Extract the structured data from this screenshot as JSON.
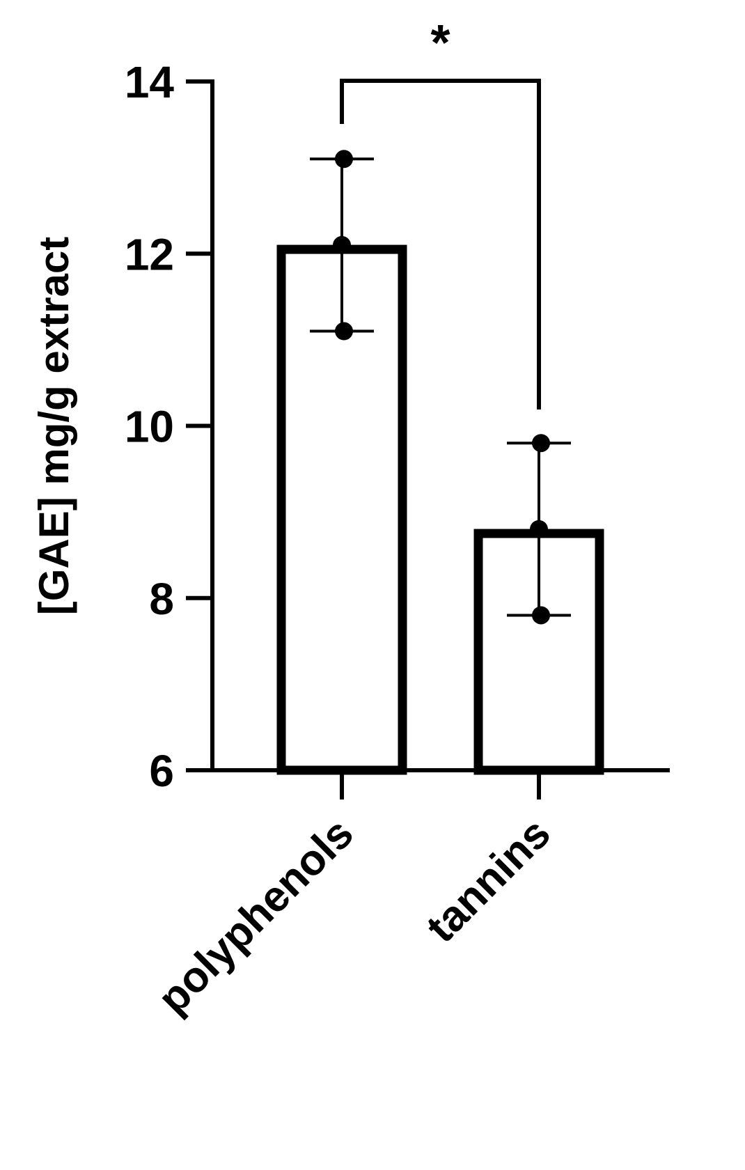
{
  "chart_data": {
    "type": "bar",
    "categories": [
      "polyphenols",
      "tannins"
    ],
    "values": [
      12.05,
      8.75
    ],
    "points": [
      [
        13.1,
        12.1,
        11.1
      ],
      [
        9.8,
        8.8,
        7.8
      ]
    ],
    "error_bars": [
      [
        11.1,
        13.1
      ],
      [
        7.8,
        9.8
      ]
    ],
    "title": "",
    "xlabel": "",
    "ylabel": "[GAE] mg/g extract",
    "ylim": [
      6,
      14
    ],
    "yticks": [
      "6",
      "8",
      "10",
      "12",
      "14"
    ],
    "grid": false,
    "legend": "none",
    "annotations": [
      {
        "text": "*",
        "between": [
          "polyphenols",
          "tannins"
        ]
      }
    ],
    "colors": {
      "stroke": "#000000",
      "fill": "#ffffff"
    }
  }
}
